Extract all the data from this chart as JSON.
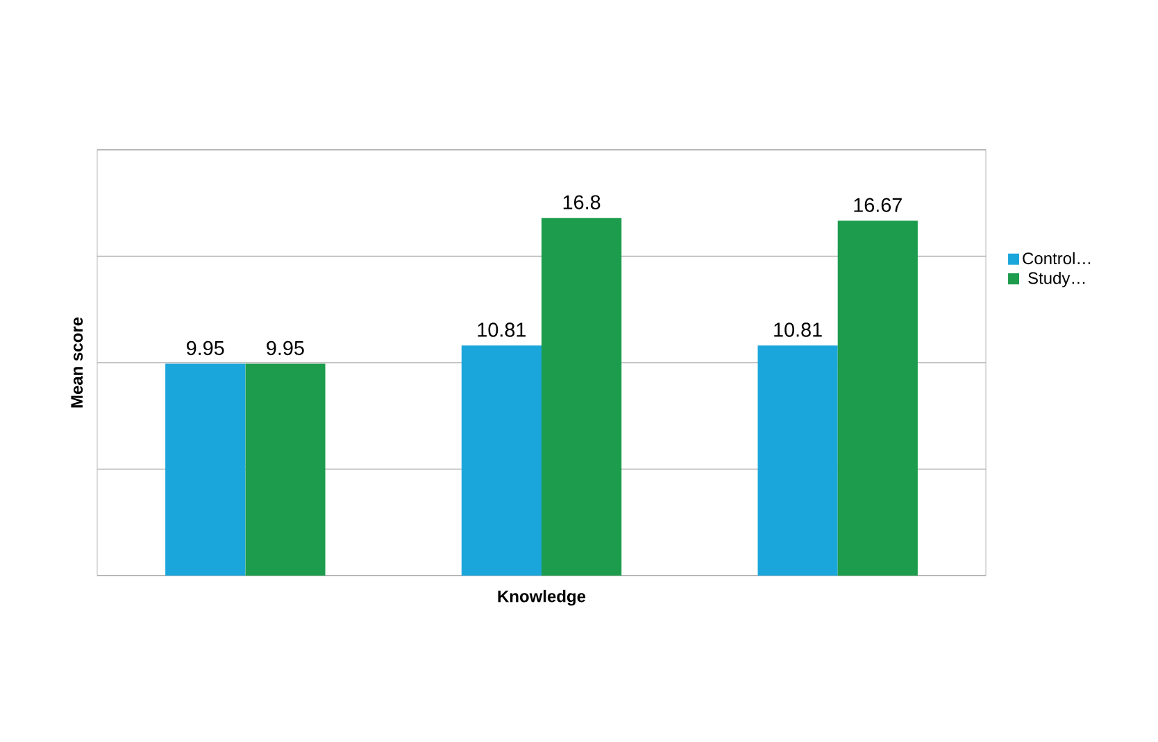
{
  "chart_data": {
    "type": "bar",
    "xlabel": "Knowledge",
    "ylabel": "Mean  score",
    "categories": [
      null,
      null,
      null
    ],
    "series": [
      {
        "name": "Control…",
        "color": "#1ba6db",
        "values": [
          9.95,
          10.81,
          10.81
        ]
      },
      {
        "name": "Study…",
        "color": "#1c9c4c",
        "values": [
          9.95,
          16.8,
          16.67
        ]
      }
    ],
    "ylim": [
      0,
      20
    ],
    "yticks": [
      {
        "value": 0,
        "label": null
      },
      {
        "value": 5,
        "label": null
      },
      {
        "value": 10,
        "label": null
      },
      {
        "value": 15,
        "label": null
      },
      {
        "value": 20,
        "label": null
      }
    ],
    "grid": "y",
    "legend": "right",
    "data_labels": true
  }
}
